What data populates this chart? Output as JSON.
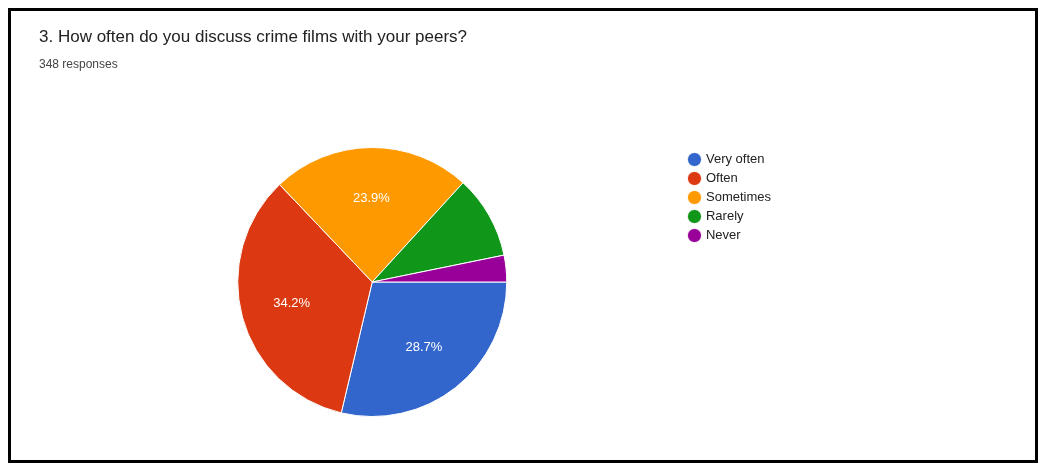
{
  "chart_data": {
    "type": "pie",
    "title": "3. How often do you discuss crime films with your peers?",
    "subtitle": "348 responses",
    "categories": [
      "Very often",
      "Often",
      "Sometimes",
      "Rarely",
      "Never"
    ],
    "values": [
      28.7,
      34.2,
      23.9,
      10.0,
      3.2
    ],
    "value_labels": [
      "28.7%",
      "34.2%",
      "23.9%",
      null,
      null
    ],
    "colors": [
      "#3366cc",
      "#dc3912",
      "#ff9900",
      "#109618",
      "#990099"
    ],
    "legend": "right"
  }
}
